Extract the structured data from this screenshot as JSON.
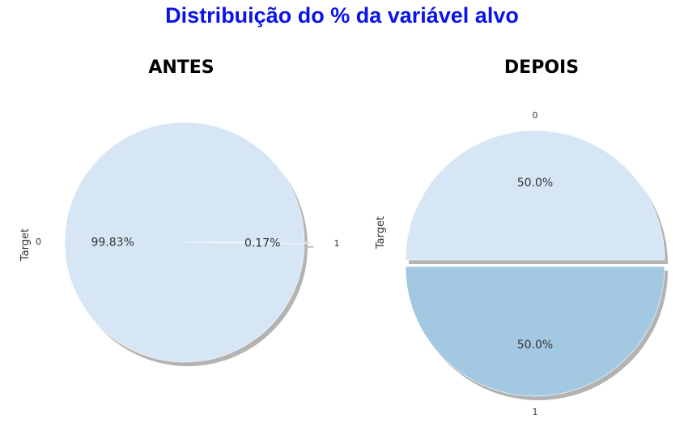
{
  "title": "Distribuição do % da variável alvo",
  "colors": {
    "title": "#0a14e6",
    "slice_0": "#d6e6f4",
    "slice_1": "#a3c8e2",
    "shadow": "#9a9a9a"
  },
  "chart_data": [
    {
      "type": "pie",
      "title": "ANTES",
      "ylabel": "Target",
      "categories": [
        "0",
        "1"
      ],
      "values": [
        99.83,
        0.17
      ],
      "labels": [
        "99.83%",
        "0.17%"
      ],
      "explode": [
        0,
        0.05
      ],
      "shadow": true
    },
    {
      "type": "pie",
      "title": "DEPOIS",
      "ylabel": "Target",
      "categories": [
        "0",
        "1"
      ],
      "values": [
        50.0,
        50.0
      ],
      "labels": [
        "50.0%",
        "50.0%"
      ],
      "explode": [
        0,
        0.05
      ],
      "shadow": true
    }
  ]
}
